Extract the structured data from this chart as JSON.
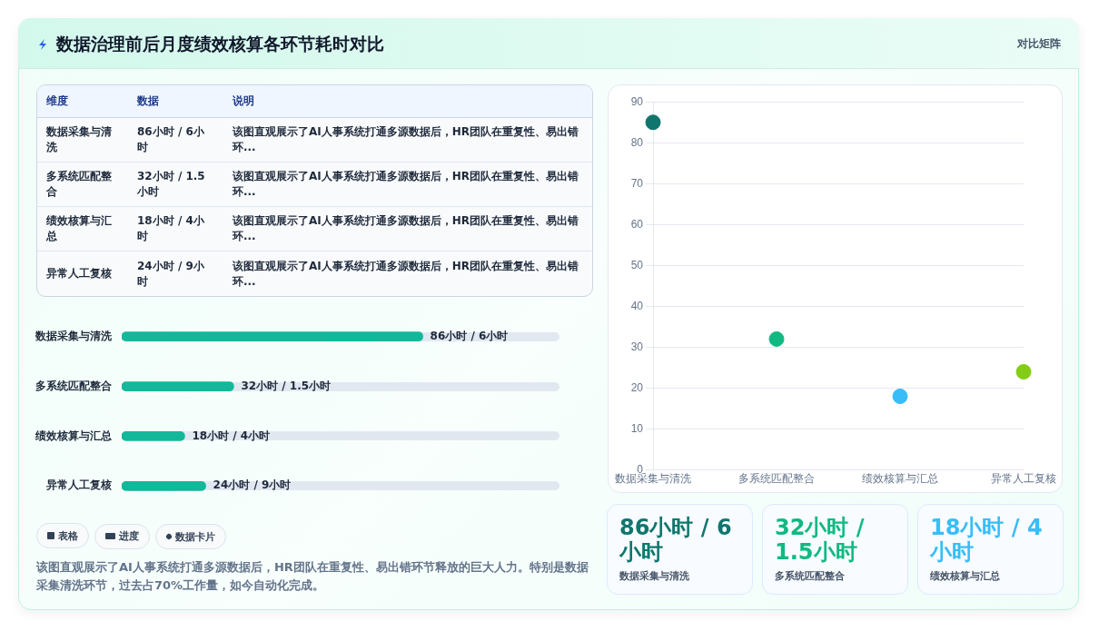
{
  "chart_data": [
    {
      "type": "other",
      "title": "数据治理前后月度绩效核算各环节耗时对比",
      "annotations": [
        "对比矩阵",
        "维度",
        "数据",
        "说明",
        "数据采集与清洗",
        "86小时 / 6小时",
        "该图直观展示了AI人事系统打通多源数据后，HR团队在重复性、易出错环...",
        "多系统匹配整合",
        "32小时 / 1.5小时",
        "该图直观展示了AI人事系统打通多源数据后，HR团队在重复性、易出错环...",
        "绩效核算与汇总",
        "18小时 / 4小时",
        "该图直观展示了AI人事系统打通多源数据后，HR团队在重复性、易出错环...",
        "异常人工复核",
        "24小时 / 9小时",
        "该图直观展示了AI人事系统打通多源数据后，HR团队在重复性、易出错环..."
      ]
    },
    {
      "type": "bar",
      "orientation": "horizontal",
      "tick_labels": "y",
      "xlim": [
        0,
        125
      ],
      "categories": [
        "数据采集与清洗",
        "多系统匹配整合",
        "绩效核算与汇总",
        "异常人工复核"
      ],
      "values": [
        86,
        32,
        18,
        24
      ],
      "value_labels": [
        "86小时 / 6小时",
        "32小时 / 1.5小时",
        "18小时 / 4小时",
        "24小时 / 9小时"
      ],
      "color": "#13b89a"
    },
    {
      "type": "other",
      "annotations": [
        "表格",
        "进度",
        "数据卡片",
        "该图直观展示了AI人事系统打通多源数据后，HR团队在重复性、易出错环节释放的巨大人力。特别是数据采集清洗环节，过去占70%工作量，如今自动化完成。"
      ]
    },
    {
      "type": "scatter",
      "categories": [
        "数据采集与清洗",
        "多系统匹配整合",
        "绩效核算与汇总",
        "异常人工复核"
      ],
      "values": [
        85,
        32,
        18,
        24
      ],
      "colors": [
        "#0f766e",
        "#10b981",
        "#38bdf8",
        "#84cc16"
      ],
      "ylim": [
        0,
        90
      ],
      "yticks": [
        0,
        10,
        20,
        30,
        40,
        50,
        60,
        70,
        80,
        90
      ],
      "grid": "y",
      "marker": "circle"
    },
    {
      "type": "other",
      "annotations": [
        "86小时 / 6小时",
        "数据采集与清洗",
        "32小时 / 1.5小时",
        "多系统匹配整合",
        "18小时 / 4小时",
        "绩效核算与汇总"
      ]
    }
  ]
}
